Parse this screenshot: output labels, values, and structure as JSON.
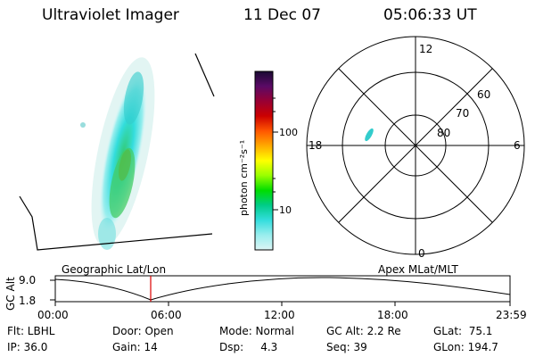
{
  "header": {
    "instrument": "Ultraviolet Imager",
    "date": "11 Dec 07",
    "time": "05:06:33 UT"
  },
  "colorbar": {
    "unit": "photon cm⁻²s⁻¹",
    "ticks": [
      "100",
      "10"
    ],
    "stops": [
      "#1a0a33",
      "#5a0a66",
      "#990033",
      "#cc0000",
      "#ff5500",
      "#ffaa00",
      "#ffff00",
      "#99ff00",
      "#00dd00",
      "#00cc88",
      "#33dddd",
      "#99eeee",
      "#ddf5f5"
    ]
  },
  "polar": {
    "mlt_labels": [
      "12",
      "18",
      "6",
      "0"
    ],
    "mlat_labels": [
      "60",
      "70",
      "80"
    ]
  },
  "timeline": {
    "ylabel": "GC Alt",
    "y_ticks": [
      "9.0",
      "1.8"
    ],
    "geo_label": "Geographic Lat/Lon",
    "apex_label": "Apex MLat/MLT",
    "x_ticks": [
      "00:00",
      "06:00",
      "12:00",
      "18:00",
      "23:59"
    ]
  },
  "status": {
    "filter": "Flt: LBHL",
    "door": "Door: Open",
    "mode": "Mode: Normal",
    "gc_alt": "GC Alt: 2.2 Re",
    "glat": "GLat:  75.1",
    "ip": "IP: 36.0",
    "gain": "Gain: 14",
    "dsp": "Dsp:     4.3",
    "seq": "Seq: 39",
    "glon": "GLon: 194.7"
  }
}
